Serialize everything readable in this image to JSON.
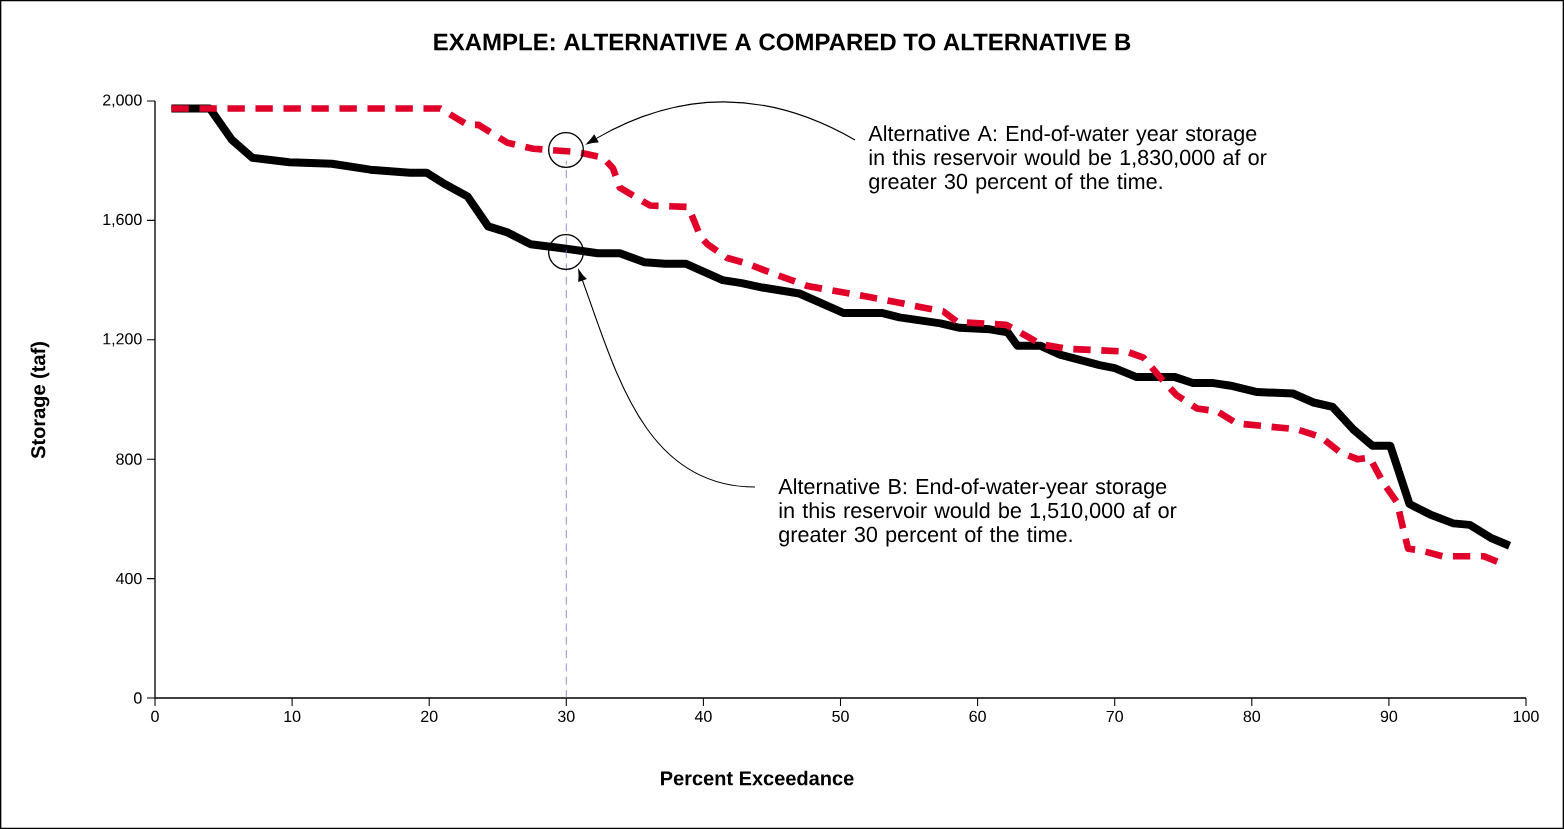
{
  "chart_data": {
    "type": "line",
    "title": "EXAMPLE: ALTERNATIVE A COMPARED TO ALTERNATIVE B",
    "xlabel": "Percent Exceedance",
    "ylabel": "Storage (taf)",
    "xlim": [
      0,
      100
    ],
    "xticks": [
      0,
      10,
      20,
      30,
      40,
      50,
      60,
      70,
      80,
      90,
      100
    ],
    "ylim": [
      0,
      2000
    ],
    "yticks": [
      {
        "value": 0,
        "label": "0"
      },
      {
        "value": 400,
        "label": "400"
      },
      {
        "value": 800,
        "label": "800"
      },
      {
        "value": 1200,
        "label": "1,200"
      },
      {
        "value": 1600,
        "label": "1,600"
      },
      {
        "value": 2000,
        "label": "2,000"
      }
    ],
    "grid": false,
    "marker": "none",
    "series": [
      {
        "color": "#000000",
        "line_style": "solid",
        "x": [
          1.2,
          4.0,
          5.6,
          7.1,
          9.8,
          12.9,
          15.7,
          18.6,
          19.8,
          21.2,
          22.8,
          24.3,
          25.7,
          27.4,
          30.0,
          32.3,
          33.9,
          35.7,
          37.2,
          38.7,
          41.4,
          42.8,
          44.3,
          47.0,
          50.2,
          53.0,
          54.3,
          57.3,
          58.7,
          60.9,
          62.2,
          62.9,
          64.6,
          66.0,
          68.9,
          70.0,
          71.6,
          74.4,
          75.7,
          77.2,
          78.6,
          80.4,
          83.0,
          84.5,
          85.9,
          87.4,
          88.8,
          90.1,
          91.5,
          93.0,
          94.7,
          95.9,
          97.5,
          98.8
        ],
        "values": [
          1975,
          1975,
          1870,
          1810,
          1795,
          1790,
          1770,
          1760,
          1760,
          1720,
          1680,
          1580,
          1560,
          1520,
          1505,
          1490,
          1490,
          1460,
          1455,
          1455,
          1400,
          1390,
          1375,
          1355,
          1290,
          1290,
          1275,
          1255,
          1240,
          1235,
          1225,
          1180,
          1180,
          1150,
          1115,
          1105,
          1075,
          1075,
          1055,
          1055,
          1045,
          1025,
          1020,
          990,
          975,
          900,
          845,
          845,
          650,
          615,
          585,
          580,
          535,
          510
        ]
      },
      {
        "color": "#e0002a",
        "line_style": "dashed",
        "x": [
          1.2,
          20.8,
          22.8,
          23.6,
          25.7,
          27.6,
          30.5,
          31.2,
          32.7,
          33.4,
          33.9,
          36.1,
          38.9,
          39.8,
          40.3,
          41.7,
          43.2,
          44.9,
          45.8,
          47.6,
          51.9,
          53.1,
          55.8,
          57.5,
          58.5,
          62.1,
          63.1,
          64.6,
          66.5,
          68.9,
          70.9,
          72.1,
          73.3,
          74.5,
          76.0,
          77.5,
          78.9,
          81.1,
          83.3,
          85.0,
          86.4,
          87.7,
          88.6,
          89.6,
          90.6,
          91.0,
          91.4,
          92.3,
          93.9,
          96.9,
          98.0
        ],
        "values": [
          1975,
          1975,
          1920,
          1920,
          1860,
          1840,
          1830,
          1825,
          1810,
          1775,
          1710,
          1650,
          1645,
          1545,
          1520,
          1475,
          1455,
          1425,
          1410,
          1380,
          1345,
          1335,
          1310,
          1295,
          1260,
          1250,
          1225,
          1185,
          1170,
          1165,
          1160,
          1140,
          1075,
          1015,
          970,
          960,
          920,
          910,
          900,
          875,
          825,
          800,
          805,
          720,
          655,
          575,
          500,
          495,
          475,
          475,
          455
        ]
      }
    ],
    "ref_lines": [
      {
        "axis": "x",
        "value": 30,
        "color": "#6f74c8",
        "line_style": "dashed"
      }
    ],
    "annotations": [
      "Alternative A: End-of-water year storage in this reservoir would be 1,830,000 af or greater 30 percent of the time.",
      "Alternative B: End-of-water-year storage in this reservoir would be 1,510,000 af or greater 30 percent of the time."
    ]
  }
}
